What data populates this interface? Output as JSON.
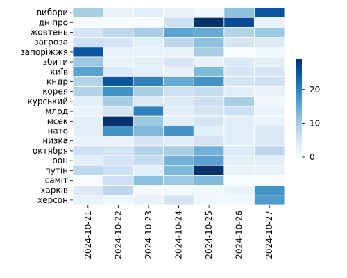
{
  "chart_data": {
    "type": "heatmap",
    "title": "",
    "xlabel": "",
    "ylabel": "",
    "x": [
      "2024-10-21",
      "2024-10-22",
      "2024-10-23",
      "2024-10-24",
      "2024-10-25",
      "2024-10-26",
      "2024-10-27"
    ],
    "y": [
      "вибори",
      "дніпро",
      "жовтень",
      "загроза",
      "запоріжжя",
      "збити",
      "київ",
      "кндр",
      "корея",
      "курський",
      "млрд",
      "мсек",
      "нато",
      "низка",
      "октября",
      "оон",
      "путін",
      "саміт",
      "харків",
      "херсон"
    ],
    "values": [
      [
        10,
        2,
        3,
        2,
        1,
        12,
        25
      ],
      [
        0,
        0,
        0,
        6,
        29,
        26,
        2
      ],
      [
        5,
        8,
        10,
        16,
        15,
        9,
        11
      ],
      [
        6,
        5,
        3,
        8,
        12,
        5,
        4
      ],
      [
        25,
        2,
        2,
        2,
        10,
        0,
        1
      ],
      [
        11,
        2,
        3,
        5,
        2,
        4,
        3
      ],
      [
        16,
        4,
        3,
        2,
        13,
        5,
        5
      ],
      [
        9,
        25,
        20,
        15,
        18,
        5,
        6
      ],
      [
        9,
        18,
        10,
        6,
        7,
        3,
        2
      ],
      [
        3,
        10,
        4,
        4,
        6,
        10,
        1
      ],
      [
        2,
        5,
        20,
        3,
        5,
        6,
        2
      ],
      [
        3,
        30,
        11,
        3,
        5,
        3,
        2
      ],
      [
        3,
        18,
        13,
        18,
        3,
        3,
        4
      ],
      [
        2,
        2,
        5,
        3,
        5,
        3,
        4
      ],
      [
        6,
        5,
        9,
        10,
        14,
        4,
        8
      ],
      [
        3,
        5,
        7,
        14,
        16,
        3,
        3
      ],
      [
        8,
        6,
        3,
        13,
        30,
        2,
        2
      ],
      [
        0,
        6,
        12,
        11,
        13,
        0,
        0
      ],
      [
        4,
        8,
        0,
        1,
        1,
        2,
        18
      ],
      [
        2,
        1,
        2,
        5,
        1,
        1,
        17
      ]
    ],
    "colorbar": {
      "min": 0,
      "max": 29,
      "ticks": [
        0,
        10,
        20
      ]
    },
    "colormap": {
      "low": "#f7fbff",
      "high": "#08306b"
    }
  }
}
